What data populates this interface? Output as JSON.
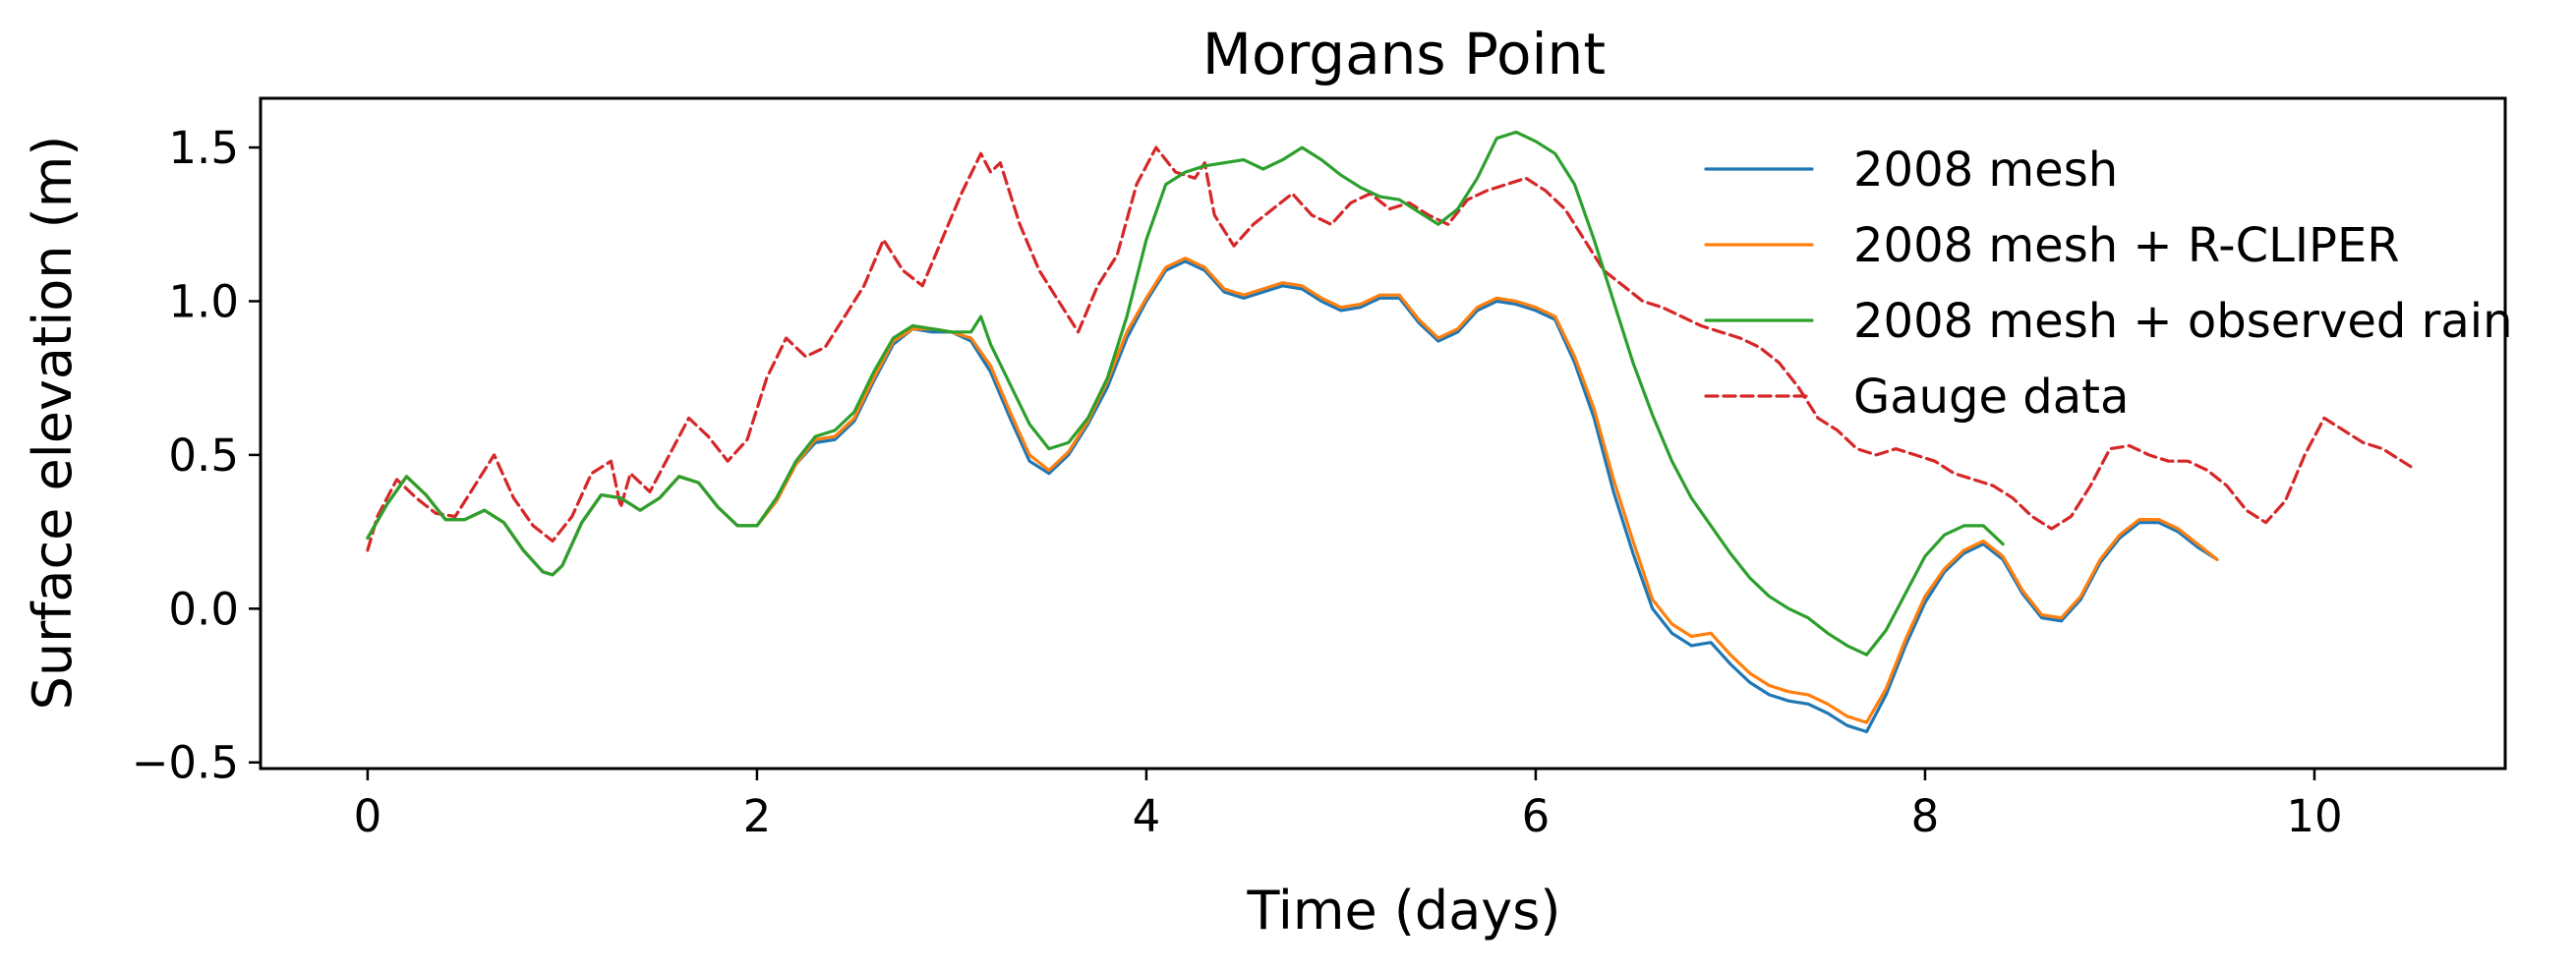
{
  "chart_data": {
    "type": "line",
    "title": "Morgans Point",
    "xlabel": "Time (days)",
    "ylabel": "Surface elevation (m)",
    "xlim": [
      -0.55,
      10.98
    ],
    "ylim": [
      -0.52,
      1.66
    ],
    "xticks": [
      0,
      2,
      4,
      6,
      8,
      10
    ],
    "xtick_labels": [
      "0",
      "2",
      "4",
      "6",
      "8",
      "10"
    ],
    "yticks": [
      -0.5,
      0.0,
      0.5,
      1.0,
      1.5
    ],
    "ytick_labels": [
      "−0.5",
      "0.0",
      "0.5",
      "1.0",
      "1.5"
    ],
    "grid": false,
    "legend_position": "upper-right",
    "series": [
      {
        "name": "2008 mesh",
        "color": "#1f77b4",
        "style": "solid",
        "x": [
          0,
          0.1,
          0.2,
          0.3,
          0.4,
          0.5,
          0.6,
          0.7,
          0.8,
          0.9,
          0.95,
          1.0,
          1.1,
          1.2,
          1.3,
          1.4,
          1.5,
          1.6,
          1.7,
          1.8,
          1.9,
          2.0,
          2.1,
          2.2,
          2.3,
          2.4,
          2.5,
          2.6,
          2.7,
          2.8,
          2.9,
          3.0,
          3.1,
          3.2,
          3.3,
          3.4,
          3.5,
          3.6,
          3.7,
          3.8,
          3.9,
          4.0,
          4.1,
          4.2,
          4.3,
          4.4,
          4.5,
          4.6,
          4.7,
          4.8,
          4.9,
          5.0,
          5.1,
          5.2,
          5.3,
          5.4,
          5.5,
          5.6,
          5.7,
          5.8,
          5.9,
          6.0,
          6.1,
          6.2,
          6.3,
          6.4,
          6.5,
          6.6,
          6.7,
          6.8,
          6.9,
          7.0,
          7.1,
          7.2,
          7.3,
          7.4,
          7.5,
          7.6,
          7.7,
          7.8,
          7.9,
          8.0,
          8.1,
          8.2,
          8.3,
          8.4,
          8.5,
          8.6,
          8.7,
          8.8,
          8.9,
          9.0,
          9.1,
          9.2,
          9.3,
          9.4,
          9.5
        ],
        "y": [
          0.23,
          0.34,
          0.43,
          0.37,
          0.29,
          0.29,
          0.32,
          0.28,
          0.19,
          0.12,
          0.11,
          0.14,
          0.28,
          0.37,
          0.36,
          0.32,
          0.36,
          0.43,
          0.41,
          0.33,
          0.27,
          0.27,
          0.35,
          0.47,
          0.54,
          0.55,
          0.61,
          0.74,
          0.86,
          0.91,
          0.9,
          0.9,
          0.87,
          0.77,
          0.62,
          0.48,
          0.44,
          0.5,
          0.6,
          0.72,
          0.88,
          1.0,
          1.1,
          1.13,
          1.1,
          1.03,
          1.01,
          1.03,
          1.05,
          1.04,
          1.0,
          0.97,
          0.98,
          1.01,
          1.01,
          0.93,
          0.87,
          0.9,
          0.97,
          1.0,
          0.99,
          0.97,
          0.94,
          0.8,
          0.62,
          0.38,
          0.18,
          0.0,
          -0.08,
          -0.12,
          -0.11,
          -0.18,
          -0.24,
          -0.28,
          -0.3,
          -0.31,
          -0.34,
          -0.38,
          -0.4,
          -0.28,
          -0.12,
          0.02,
          0.12,
          0.18,
          0.21,
          0.16,
          0.05,
          -0.03,
          -0.04,
          0.03,
          0.15,
          0.23,
          0.28,
          0.28,
          0.25,
          0.2,
          0.16
        ]
      },
      {
        "name": "2008 mesh + R-CLIPER",
        "color": "#ff7f0e",
        "style": "solid",
        "x": [
          0,
          0.1,
          0.2,
          0.3,
          0.4,
          0.5,
          0.6,
          0.7,
          0.8,
          0.9,
          0.95,
          1.0,
          1.1,
          1.2,
          1.3,
          1.4,
          1.5,
          1.6,
          1.7,
          1.8,
          1.9,
          2.0,
          2.1,
          2.2,
          2.3,
          2.4,
          2.5,
          2.6,
          2.7,
          2.8,
          2.9,
          3.0,
          3.1,
          3.2,
          3.3,
          3.4,
          3.5,
          3.6,
          3.7,
          3.8,
          3.9,
          4.0,
          4.1,
          4.2,
          4.3,
          4.4,
          4.5,
          4.6,
          4.7,
          4.8,
          4.9,
          5.0,
          5.1,
          5.2,
          5.3,
          5.4,
          5.5,
          5.6,
          5.7,
          5.8,
          5.9,
          6.0,
          6.1,
          6.2,
          6.3,
          6.4,
          6.5,
          6.6,
          6.7,
          6.8,
          6.9,
          7.0,
          7.1,
          7.2,
          7.3,
          7.4,
          7.5,
          7.6,
          7.7,
          7.8,
          7.9,
          8.0,
          8.1,
          8.2,
          8.3,
          8.4,
          8.5,
          8.6,
          8.7,
          8.8,
          8.9,
          9.0,
          9.1,
          9.2,
          9.3,
          9.4,
          9.5
        ],
        "y": [
          0.23,
          0.34,
          0.43,
          0.37,
          0.29,
          0.29,
          0.32,
          0.28,
          0.19,
          0.12,
          0.11,
          0.14,
          0.28,
          0.37,
          0.36,
          0.32,
          0.36,
          0.43,
          0.41,
          0.33,
          0.27,
          0.27,
          0.35,
          0.47,
          0.55,
          0.56,
          0.62,
          0.75,
          0.87,
          0.91,
          0.91,
          0.9,
          0.88,
          0.79,
          0.64,
          0.5,
          0.45,
          0.51,
          0.61,
          0.74,
          0.9,
          1.01,
          1.11,
          1.14,
          1.11,
          1.04,
          1.02,
          1.04,
          1.06,
          1.05,
          1.01,
          0.98,
          0.99,
          1.02,
          1.02,
          0.94,
          0.88,
          0.91,
          0.98,
          1.01,
          1.0,
          0.98,
          0.95,
          0.82,
          0.65,
          0.42,
          0.22,
          0.03,
          -0.05,
          -0.09,
          -0.08,
          -0.15,
          -0.21,
          -0.25,
          -0.27,
          -0.28,
          -0.31,
          -0.35,
          -0.37,
          -0.26,
          -0.1,
          0.04,
          0.13,
          0.19,
          0.22,
          0.17,
          0.06,
          -0.02,
          -0.03,
          0.04,
          0.16,
          0.24,
          0.29,
          0.29,
          0.26,
          0.21,
          0.16
        ]
      },
      {
        "name": "2008 mesh + observed rain",
        "color": "#2ca02c",
        "style": "solid",
        "x": [
          0,
          0.1,
          0.2,
          0.3,
          0.4,
          0.5,
          0.6,
          0.7,
          0.8,
          0.9,
          0.95,
          1.0,
          1.1,
          1.2,
          1.3,
          1.4,
          1.5,
          1.6,
          1.7,
          1.8,
          1.9,
          2.0,
          2.1,
          2.2,
          2.3,
          2.4,
          2.5,
          2.6,
          2.7,
          2.8,
          2.9,
          3.0,
          3.1,
          3.15,
          3.2,
          3.3,
          3.4,
          3.5,
          3.6,
          3.7,
          3.8,
          3.9,
          4.0,
          4.1,
          4.2,
          4.3,
          4.4,
          4.5,
          4.6,
          4.7,
          4.8,
          4.9,
          5.0,
          5.1,
          5.2,
          5.3,
          5.4,
          5.5,
          5.6,
          5.7,
          5.8,
          5.9,
          6.0,
          6.1,
          6.2,
          6.3,
          6.4,
          6.5,
          6.6,
          6.7,
          6.8,
          6.9,
          7.0,
          7.1,
          7.2,
          7.3,
          7.4,
          7.5,
          7.6,
          7.7,
          7.8,
          7.9,
          8.0,
          8.1,
          8.2,
          8.3,
          8.4
        ],
        "y": [
          0.23,
          0.34,
          0.43,
          0.37,
          0.29,
          0.29,
          0.32,
          0.28,
          0.19,
          0.12,
          0.11,
          0.14,
          0.28,
          0.37,
          0.36,
          0.32,
          0.36,
          0.43,
          0.41,
          0.33,
          0.27,
          0.27,
          0.36,
          0.48,
          0.56,
          0.58,
          0.64,
          0.77,
          0.88,
          0.92,
          0.91,
          0.9,
          0.9,
          0.95,
          0.86,
          0.73,
          0.6,
          0.52,
          0.54,
          0.62,
          0.75,
          0.95,
          1.2,
          1.38,
          1.42,
          1.44,
          1.45,
          1.46,
          1.43,
          1.46,
          1.5,
          1.46,
          1.41,
          1.37,
          1.34,
          1.33,
          1.29,
          1.25,
          1.3,
          1.4,
          1.53,
          1.55,
          1.52,
          1.48,
          1.38,
          1.2,
          1.0,
          0.8,
          0.63,
          0.48,
          0.36,
          0.27,
          0.18,
          0.1,
          0.04,
          0.0,
          -0.03,
          -0.08,
          -0.12,
          -0.15,
          -0.07,
          0.05,
          0.17,
          0.24,
          0.27,
          0.27,
          0.21
        ]
      },
      {
        "name": "Gauge data",
        "color": "#d62728",
        "style": "dashed",
        "x": [
          0,
          0.05,
          0.15,
          0.25,
          0.35,
          0.45,
          0.55,
          0.65,
          0.75,
          0.85,
          0.95,
          1.05,
          1.15,
          1.25,
          1.3,
          1.35,
          1.45,
          1.55,
          1.65,
          1.75,
          1.85,
          1.95,
          2.05,
          2.15,
          2.25,
          2.35,
          2.45,
          2.55,
          2.65,
          2.75,
          2.85,
          2.95,
          3.05,
          3.15,
          3.2,
          3.25,
          3.35,
          3.45,
          3.55,
          3.65,
          3.75,
          3.85,
          3.95,
          4.05,
          4.15,
          4.25,
          4.3,
          4.35,
          4.45,
          4.55,
          4.65,
          4.75,
          4.85,
          4.95,
          5.05,
          5.15,
          5.25,
          5.35,
          5.45,
          5.55,
          5.65,
          5.75,
          5.85,
          5.95,
          6.05,
          6.15,
          6.25,
          6.35,
          6.45,
          6.55,
          6.65,
          6.75,
          6.85,
          6.95,
          7.05,
          7.15,
          7.25,
          7.35,
          7.45,
          7.55,
          7.65,
          7.75,
          7.85,
          7.95,
          8.05,
          8.15,
          8.25,
          8.35,
          8.45,
          8.55,
          8.65,
          8.75,
          8.85,
          8.95,
          9.05,
          9.15,
          9.25,
          9.35,
          9.45,
          9.55,
          9.65,
          9.75,
          9.85,
          9.95,
          10.05,
          10.15,
          10.25,
          10.35,
          10.45,
          10.5
        ],
        "y": [
          0.19,
          0.3,
          0.42,
          0.36,
          0.31,
          0.3,
          0.4,
          0.5,
          0.36,
          0.27,
          0.22,
          0.3,
          0.44,
          0.48,
          0.33,
          0.44,
          0.38,
          0.5,
          0.62,
          0.56,
          0.48,
          0.55,
          0.75,
          0.88,
          0.82,
          0.85,
          0.95,
          1.05,
          1.2,
          1.1,
          1.05,
          1.2,
          1.35,
          1.48,
          1.42,
          1.45,
          1.25,
          1.1,
          1.0,
          0.9,
          1.05,
          1.15,
          1.38,
          1.5,
          1.42,
          1.4,
          1.45,
          1.28,
          1.18,
          1.25,
          1.3,
          1.35,
          1.28,
          1.25,
          1.32,
          1.35,
          1.3,
          1.32,
          1.28,
          1.25,
          1.33,
          1.36,
          1.38,
          1.4,
          1.36,
          1.3,
          1.2,
          1.1,
          1.05,
          1.0,
          0.98,
          0.95,
          0.92,
          0.9,
          0.88,
          0.85,
          0.8,
          0.72,
          0.62,
          0.58,
          0.52,
          0.5,
          0.52,
          0.5,
          0.48,
          0.44,
          0.42,
          0.4,
          0.36,
          0.3,
          0.26,
          0.3,
          0.4,
          0.52,
          0.53,
          0.5,
          0.48,
          0.48,
          0.45,
          0.4,
          0.32,
          0.28,
          0.35,
          0.5,
          0.62,
          0.58,
          0.54,
          0.52,
          0.48,
          0.46
        ]
      }
    ]
  }
}
